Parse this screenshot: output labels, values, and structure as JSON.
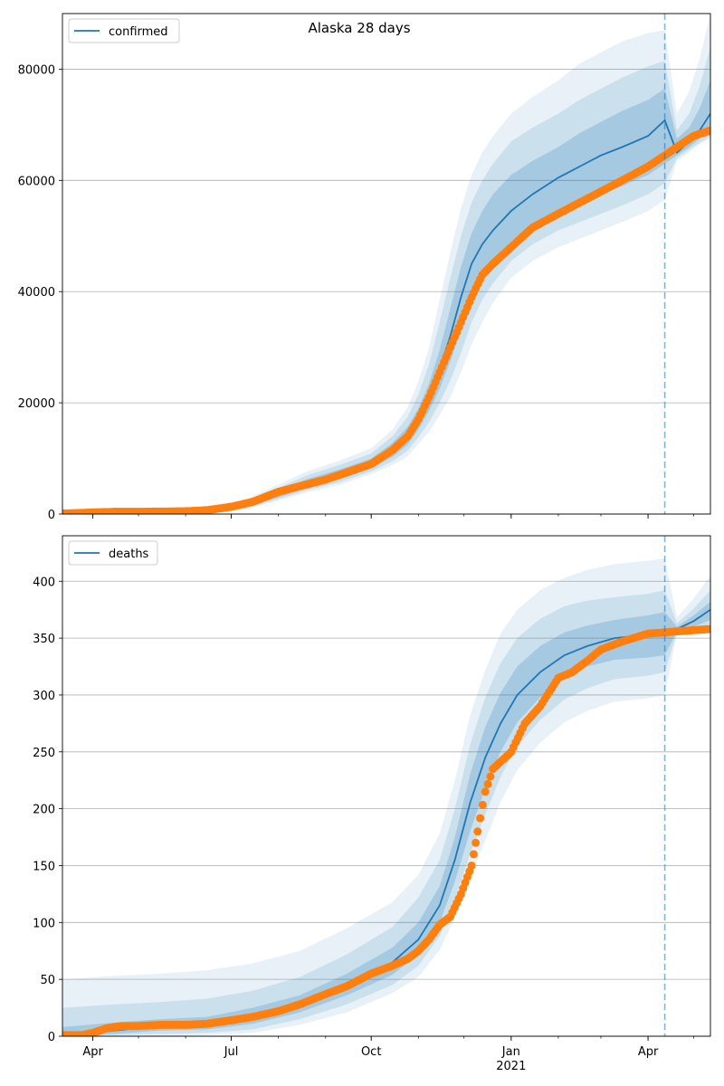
{
  "figure": {
    "title": "Alaska 28 days"
  },
  "colors": {
    "model_line": "#1f77b4",
    "observed": "#ff7f0e",
    "band": "#1f77b4",
    "grid": "#b0b0b0",
    "vline": "#1f77b4"
  },
  "chart_data": [
    {
      "type": "line",
      "title": "Alaska 28 days",
      "legend": {
        "entries": [
          "confirmed"
        ],
        "position": "top-left"
      },
      "x_axis": {
        "type": "date",
        "range": [
          "2020-03-12",
          "2021-05-12"
        ],
        "ticks": [
          {
            "date": "2020-04-01",
            "label": "Apr"
          },
          {
            "date": "2020-07-01",
            "label": "Jul"
          },
          {
            "date": "2020-10-01",
            "label": "Oct"
          },
          {
            "date": "2021-01-01",
            "label": "Jan",
            "sublabel": "2021"
          },
          {
            "date": "2021-04-01",
            "label": "Apr"
          }
        ],
        "show_labels": false
      },
      "y_axis": {
        "range": [
          0,
          90000
        ],
        "ticks": [
          0,
          20000,
          40000,
          60000,
          80000
        ]
      },
      "grid": "y",
      "vline_date": "2021-04-12",
      "model": {
        "name": "confirmed",
        "x": [
          "2020-03-12",
          "2020-04-15",
          "2020-05-15",
          "2020-06-15",
          "2020-07-10",
          "2020-08-01",
          "2020-08-20",
          "2020-09-10",
          "2020-10-01",
          "2020-10-15",
          "2020-10-25",
          "2020-11-01",
          "2020-11-08",
          "2020-11-15",
          "2020-11-22",
          "2020-11-29",
          "2020-12-06",
          "2020-12-13",
          "2020-12-20",
          "2021-01-01",
          "2021-01-15",
          "2021-02-01",
          "2021-02-15",
          "2021-03-01",
          "2021-03-15",
          "2021-04-01",
          "2021-04-12",
          "2021-04-20",
          "2021-04-28",
          "2021-05-05",
          "2021-05-12"
        ],
        "y": [
          100,
          200,
          400,
          700,
          1500,
          3500,
          5500,
          7000,
          9000,
          11500,
          14000,
          17000,
          21000,
          26000,
          32000,
          39000,
          45000,
          48500,
          51000,
          54500,
          57500,
          60500,
          62500,
          64500,
          66000,
          68000,
          70800,
          65000,
          67000,
          69000,
          72000
        ],
        "bands": [
          {
            "lower": [
              0,
              150,
              300,
              500,
              1200,
              3000,
              4800,
              6200,
              8200,
              10300,
              12500,
              15200,
              18500,
              22500,
              27500,
              33000,
              38500,
              42500,
              45500,
              49000,
              52000,
              54500,
              56000,
              57500,
              59000,
              61000,
              63000,
              64500,
              66000,
              67500,
              69000
            ],
            "upper": [
              150,
              280,
              550,
              900,
              1850,
              4100,
              6300,
              8000,
              10000,
              12800,
              15700,
              19000,
              23500,
              29500,
              37000,
              44500,
              50500,
              54500,
              57500,
              61000,
              63500,
              66000,
              68500,
              70500,
              72500,
              74500,
              76500,
              67500,
              69500,
              73000,
              78000
            ]
          },
          {
            "lower": [
              0,
              100,
              200,
              400,
              1000,
              2700,
              4300,
              5700,
              7700,
              9500,
              11400,
              13800,
              16500,
              20000,
              24000,
              29000,
              34500,
              38500,
              41500,
              45500,
              48500,
              51000,
              52500,
              54000,
              55500,
              57500,
              59500,
              64000,
              65500,
              66800,
              68000
            ],
            "upper": [
              200,
              350,
              700,
              1100,
              2200,
              4700,
              7000,
              8800,
              10900,
              14000,
              17500,
              21500,
              27000,
              34500,
              42500,
              50000,
              56000,
              60000,
              63000,
              67000,
              69500,
              72000,
              74500,
              76500,
              78500,
              80500,
              81500,
              69000,
              72000,
              77000,
              84000
            ]
          },
          {
            "lower": [
              0,
              50,
              100,
              300,
              800,
              2400,
              3900,
              5200,
              7200,
              8800,
              10400,
              12600,
              14800,
              17800,
              21000,
              25500,
              30500,
              34500,
              38000,
              42500,
              45500,
              48000,
              49500,
              51000,
              52500,
              54500,
              56500,
              63500,
              65000,
              66500,
              67500
            ],
            "upper": [
              250,
              450,
              850,
              1300,
              2600,
              5300,
              7700,
              9600,
              11800,
              15200,
              19200,
              23800,
              30000,
              38500,
              47000,
              55000,
              61000,
              65000,
              68000,
              72000,
              75000,
              78000,
              81000,
              83000,
              85000,
              86500,
              87000,
              72000,
              76000,
              82000,
              90000
            ]
          }
        ]
      },
      "observed": {
        "x": [
          "2020-03-12",
          "2020-03-25",
          "2020-04-01",
          "2020-04-15",
          "2020-05-01",
          "2020-05-15",
          "2020-06-01",
          "2020-06-15",
          "2020-07-01",
          "2020-07-15",
          "2020-08-01",
          "2020-08-15",
          "2020-09-01",
          "2020-09-15",
          "2020-10-01",
          "2020-10-15",
          "2020-10-25",
          "2020-11-01",
          "2020-11-08",
          "2020-11-15",
          "2020-11-22",
          "2020-11-29",
          "2020-12-06",
          "2020-12-13",
          "2020-12-20",
          "2021-01-01",
          "2021-01-15",
          "2021-02-01",
          "2021-02-15",
          "2021-03-01",
          "2021-03-15",
          "2021-04-01",
          "2021-04-12",
          "2021-04-20",
          "2021-05-01",
          "2021-05-12"
        ],
        "y": [
          100,
          200,
          300,
          400,
          400,
          450,
          500,
          700,
          1300,
          2200,
          4000,
          5000,
          6200,
          7500,
          9000,
          11500,
          14000,
          17000,
          21000,
          25500,
          30000,
          34500,
          39000,
          43000,
          45000,
          48000,
          51500,
          54000,
          56000,
          58000,
          60000,
          62500,
          64500,
          66000,
          68000,
          69000
        ]
      }
    },
    {
      "type": "line",
      "legend": {
        "entries": [
          "deaths"
        ],
        "position": "top-left"
      },
      "x_axis": {
        "type": "date",
        "range": [
          "2020-03-12",
          "2021-05-12"
        ],
        "ticks": [
          {
            "date": "2020-04-01",
            "label": "Apr"
          },
          {
            "date": "2020-07-01",
            "label": "Jul"
          },
          {
            "date": "2020-10-01",
            "label": "Oct"
          },
          {
            "date": "2021-01-01",
            "label": "Jan",
            "sublabel": "2021"
          },
          {
            "date": "2021-04-01",
            "label": "Apr"
          }
        ],
        "show_labels": true
      },
      "y_axis": {
        "range": [
          0,
          440
        ],
        "ticks": [
          0,
          50,
          100,
          150,
          200,
          250,
          300,
          350,
          400
        ]
      },
      "grid": "y",
      "vline_date": "2021-04-12",
      "model": {
        "name": "deaths",
        "x": [
          "2020-03-12",
          "2020-04-15",
          "2020-05-15",
          "2020-06-15",
          "2020-07-15",
          "2020-08-15",
          "2020-09-15",
          "2020-10-15",
          "2020-11-01",
          "2020-11-15",
          "2020-11-25",
          "2020-12-05",
          "2020-12-15",
          "2020-12-25",
          "2021-01-05",
          "2021-01-20",
          "2021-02-05",
          "2021-02-20",
          "2021-03-10",
          "2021-04-01",
          "2021-04-12",
          "2021-04-20",
          "2021-05-01",
          "2021-05-12"
        ],
        "y": [
          0,
          5,
          9,
          11,
          17,
          28,
          45,
          65,
          85,
          115,
          155,
          205,
          245,
          275,
          300,
          320,
          335,
          343,
          350,
          353,
          357,
          358,
          365,
          375
        ],
        "bands": [
          {
            "lower": [
              0,
              2,
              5,
              6,
              11,
              21,
              36,
              54,
              72,
              100,
              136,
              180,
              218,
              250,
              276,
              298,
              315,
              325,
              331,
              333,
              335,
              356,
              360,
              366
            ],
            "upper": [
              8,
              12,
              15,
              17,
              25,
              36,
              55,
              78,
              100,
              132,
              175,
              230,
              272,
              302,
              325,
              343,
              355,
              361,
              366,
              370,
              373,
              360,
              370,
              382
            ]
          },
          {
            "lower": [
              0,
              1,
              2,
              3,
              6,
              15,
              28,
              45,
              62,
              88,
              120,
              160,
              195,
              228,
              255,
              278,
              296,
              306,
              314,
              317,
              320,
              355,
              358,
              362
            ],
            "upper": [
              25,
              28,
              30,
              33,
              40,
              52,
              72,
              96,
              122,
              155,
              200,
              256,
              298,
              328,
              350,
              367,
              378,
              383,
              386,
              389,
              392,
              363,
              376,
              392
            ]
          },
          {
            "lower": [
              0,
              0,
              0,
              1,
              3,
              10,
              21,
              38,
              52,
              76,
              104,
              140,
              172,
              206,
              234,
              258,
              276,
              286,
              294,
              297,
              300,
              354,
              356,
              358
            ],
            "upper": [
              50,
              53,
              55,
              58,
              64,
              75,
              95,
              118,
              142,
              178,
              225,
              282,
              322,
              354,
              375,
              392,
              403,
              410,
              415,
              418,
              420,
              368,
              385,
              405
            ]
          }
        ]
      },
      "observed": {
        "x": [
          "2020-03-12",
          "2020-03-25",
          "2020-04-01",
          "2020-04-10",
          "2020-04-20",
          "2020-05-01",
          "2020-05-15",
          "2020-06-01",
          "2020-06-15",
          "2020-07-01",
          "2020-07-15",
          "2020-08-01",
          "2020-08-15",
          "2020-09-01",
          "2020-09-15",
          "2020-10-01",
          "2020-10-15",
          "2020-10-25",
          "2020-11-01",
          "2020-11-08",
          "2020-11-15",
          "2020-11-22",
          "2020-11-29",
          "2020-12-06",
          "2020-12-10",
          "2020-12-15",
          "2020-12-20",
          "2021-01-01",
          "2021-01-10",
          "2021-01-20",
          "2021-02-01",
          "2021-02-10",
          "2021-02-20",
          "2021-03-01",
          "2021-03-15",
          "2021-04-01",
          "2021-04-12",
          "2021-04-20",
          "2021-05-01",
          "2021-05-12"
        ],
        "y": [
          1,
          1,
          3,
          7,
          9,
          9,
          10,
          10,
          11,
          14,
          17,
          22,
          28,
          37,
          44,
          55,
          62,
          68,
          75,
          85,
          98,
          105,
          125,
          150,
          180,
          215,
          235,
          250,
          275,
          290,
          315,
          320,
          330,
          340,
          347,
          354,
          355,
          356,
          357,
          358
        ]
      }
    }
  ]
}
